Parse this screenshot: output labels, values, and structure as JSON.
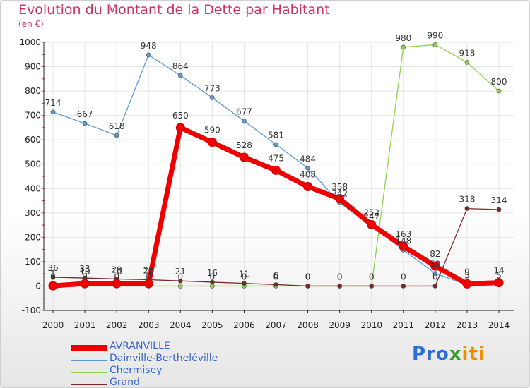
{
  "title": "Evolution du Montant de la Dette par Habitant",
  "subtitle": "(en €)",
  "logo": {
    "part1": "Pro",
    "part2": "x",
    "part3": "iti"
  },
  "chart_data": {
    "type": "line",
    "title": "Evolution du Montant de la Dette par Habitant",
    "ylabel": "(en €)",
    "x": [
      "2000",
      "2001",
      "2002",
      "2003",
      "2004",
      "2005",
      "2006",
      "2007",
      "2008",
      "2009",
      "2010",
      "2011",
      "2012",
      "2013",
      "2014"
    ],
    "ylim": [
      -100,
      1000
    ],
    "yticks": [
      "-100",
      "0",
      "100",
      "200",
      "300",
      "400",
      "500",
      "600",
      "700",
      "800",
      "900",
      "1000"
    ],
    "legend_position": "bottom-left",
    "series": [
      {
        "name": "Dainville-Bertheléville",
        "color": "#5b9bd5",
        "values": [
          714,
          667,
          618,
          948,
          864,
          773,
          677,
          581,
          484,
          342,
          247,
          148,
          52,
          5,
          5
        ],
        "labels": [
          "714",
          "667",
          "618",
          "948",
          "864",
          "773",
          "677",
          "581",
          "484",
          "342",
          "247",
          "148",
          "52",
          "5",
          "5"
        ]
      },
      {
        "name": "Chermisey",
        "color": "#8fd14f",
        "values": [
          0,
          0,
          0,
          0,
          0,
          0,
          0,
          0,
          0,
          0,
          0,
          980,
          990,
          918,
          800
        ],
        "labels": [
          "0",
          "0",
          "0",
          "0",
          "0",
          "0",
          "0",
          "0",
          "0",
          "0",
          "0",
          "980",
          "990",
          "918",
          "800"
        ]
      },
      {
        "name": "Grand",
        "color": "#7b2a2a",
        "values": [
          36,
          33,
          29,
          26,
          21,
          16,
          11,
          6,
          0,
          0,
          0,
          0,
          0,
          318,
          314
        ],
        "labels": [
          "36",
          "33",
          "29",
          "26",
          "21",
          "16",
          "11",
          "6",
          "0",
          "0",
          "0",
          "0",
          "0",
          "318",
          "314"
        ]
      },
      {
        "name": "AVRANVILLE",
        "color": "#ee0000",
        "values": [
          1,
          10,
          10,
          10,
          650,
          590,
          528,
          475,
          408,
          358,
          252,
          163,
          82,
          9,
          14
        ],
        "labels": [
          "1",
          "10",
          "10",
          "10",
          "650",
          "590",
          "528",
          "475",
          "408",
          "358",
          "252",
          "163",
          "82",
          "9",
          "14"
        ]
      }
    ]
  }
}
